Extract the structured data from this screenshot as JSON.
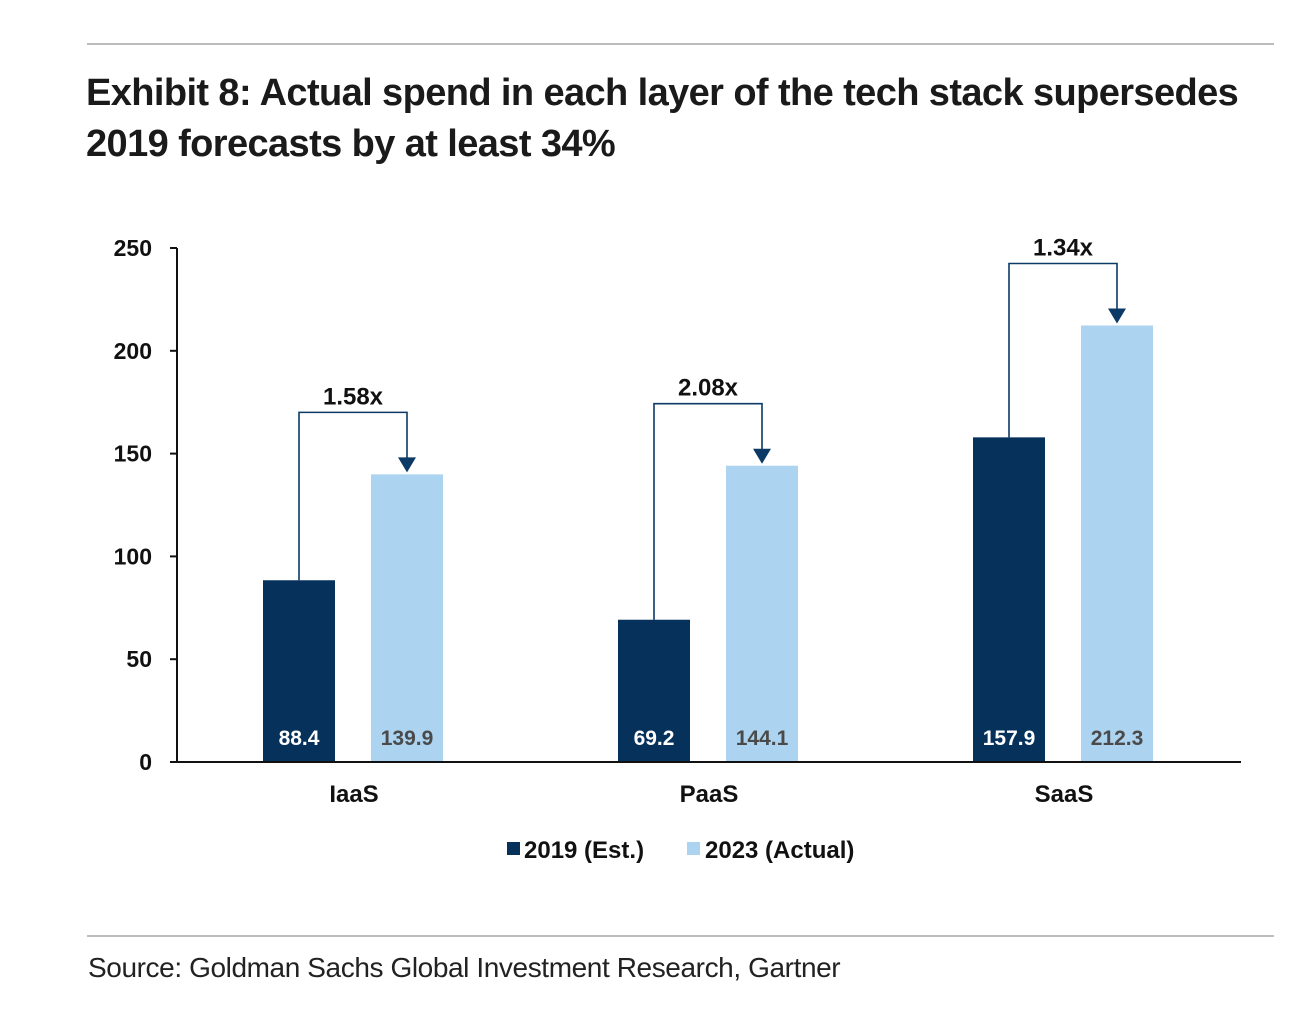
{
  "exhibit": {
    "title_line1": "Exhibit 8: Actual spend in each layer of the tech stack supersedes",
    "title_line2": "2019 forecasts by at least 34%",
    "source": "Source: Goldman Sachs Global Investment Research, Gartner"
  },
  "colors": {
    "series_2019": "#05315a",
    "series_2023": "#acd3ef",
    "axis": "#111111",
    "bracket": "#0c3a66"
  },
  "chart_data": {
    "type": "bar",
    "categories": [
      "IaaS",
      "PaaS",
      "SaaS"
    ],
    "series": [
      {
        "name": "2019 (Est.)",
        "values": [
          88.4,
          69.2,
          157.9
        ],
        "labels": [
          "88.4",
          "69.2",
          "157.9"
        ]
      },
      {
        "name": "2023 (Actual)",
        "values": [
          139.9,
          144.1,
          212.3
        ],
        "labels": [
          "139.9",
          "144.1",
          "212.3"
        ]
      }
    ],
    "ylim": [
      0,
      250
    ],
    "yticks": [
      0,
      50,
      100,
      150,
      200,
      250
    ],
    "annotations": [
      "1.58x",
      "2.08x",
      "1.34x"
    ],
    "legend_position": "bottom-center",
    "grid": false,
    "xlabel": "",
    "ylabel": ""
  }
}
